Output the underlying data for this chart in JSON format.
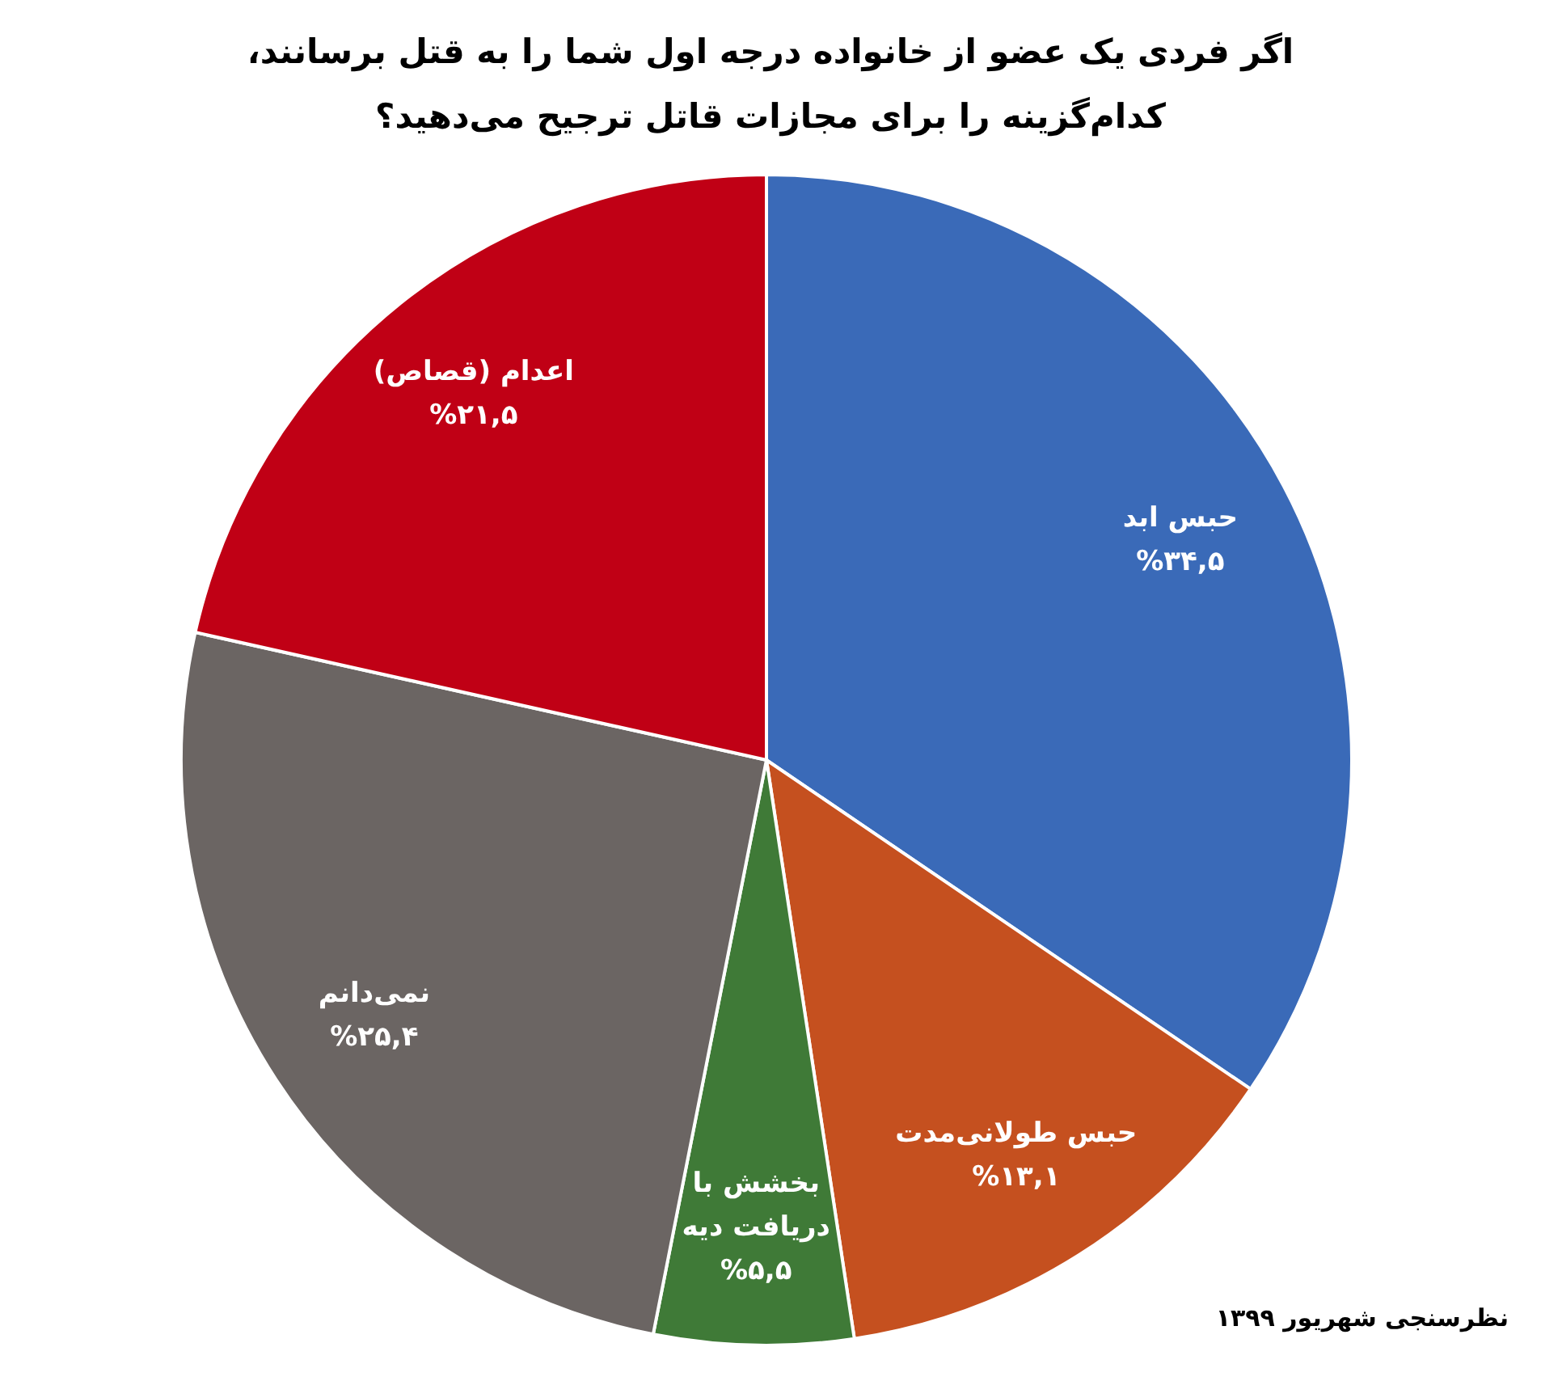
{
  "chart_data": {
    "type": "pie",
    "title": "اگر فردی یک عضو از خانواده درجه اول شما را به قتل برسانند، کدام‌گزینه را برای مجازات قاتل ترجیح می‌دهید؟",
    "categories": [
      "حبس ابد",
      "حبس طولانی‌مدت",
      "بخشش با دریافت دیه",
      "نمی‌دانم",
      "اعدام (قصاص)"
    ],
    "values": [
      34.5,
      13.1,
      5.5,
      25.4,
      21.5
    ],
    "value_labels": [
      "%۳۴,۵",
      "%۱۳,۱",
      "%۵,۵",
      "%۲۵,۴",
      "%۲۱,۵"
    ],
    "colors": [
      "#3a6ab8",
      "#c5501f",
      "#3f7a37",
      "#6b6563",
      "#c00015"
    ],
    "legend": false,
    "annotations": [
      "نظرسنجی شهریور ۱۳۹۹"
    ]
  }
}
